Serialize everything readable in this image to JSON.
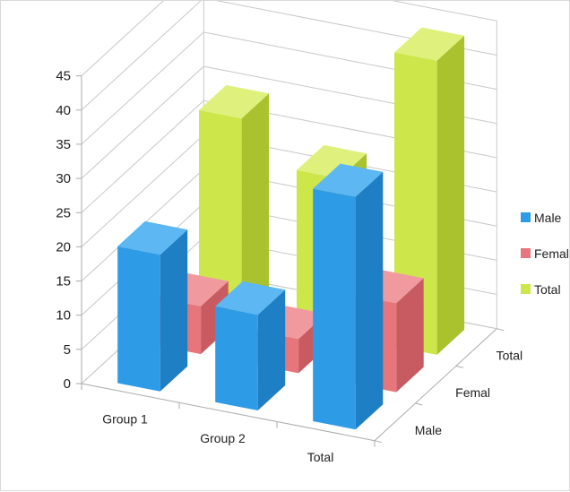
{
  "chart_data": {
    "type": "bar",
    "variant": "3d-column",
    "categories": [
      "Group 1",
      "Group 2",
      "Total"
    ],
    "series": [
      {
        "name": "Male",
        "values": [
          20,
          14,
          34
        ]
      },
      {
        "name": "Femal",
        "values": [
          7,
          5,
          13
        ]
      },
      {
        "name": "Total",
        "values": [
          29,
          23,
          43
        ]
      }
    ],
    "ylim": [
      0,
      45
    ],
    "yticks": [
      "0",
      "5",
      "10",
      "15",
      "20",
      "25",
      "30",
      "35",
      "40",
      "45"
    ],
    "grid": true,
    "legend": "right",
    "colors": {
      "Male": {
        "front": "#2e9be6",
        "side": "#1f7fc4",
        "top": "#5cb7f2"
      },
      "Femal": {
        "front": "#e6757c",
        "side": "#c85a61",
        "top": "#f09aa0"
      },
      "Total": {
        "front": "#cde64a",
        "side": "#a9c22e",
        "top": "#dff07c"
      }
    }
  }
}
